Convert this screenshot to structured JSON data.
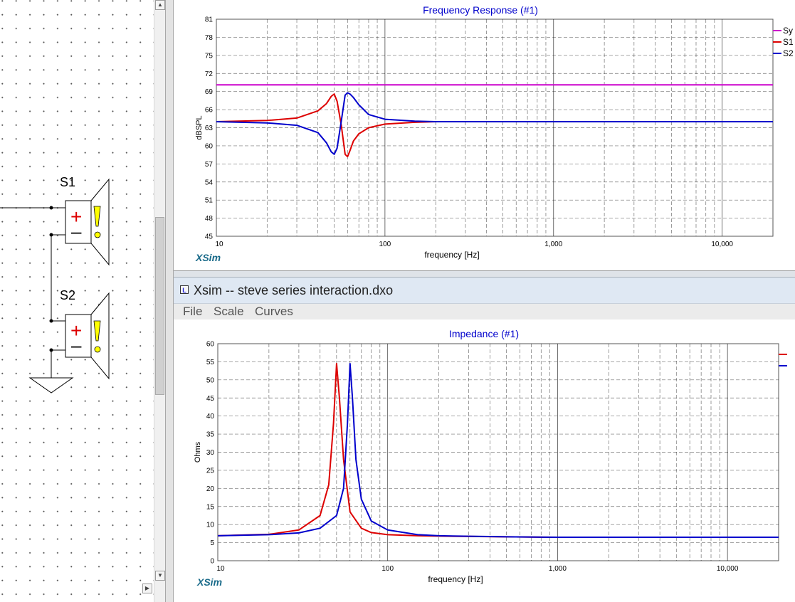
{
  "schematic": {
    "speakers": [
      {
        "label": "S1"
      },
      {
        "label": "S2"
      }
    ],
    "plus_glyph": "+",
    "minus_glyph": "–",
    "warn_glyph": "!"
  },
  "freq_chart": {
    "title": "Frequency Response (#1)",
    "xlabel": "frequency [Hz]",
    "ylabel": "dBSPL",
    "watermark": "XSim",
    "legend": [
      "Sy",
      "S1",
      "S2"
    ]
  },
  "imp_window": {
    "title": "Xsim -- steve series interaction.dxo",
    "menu": [
      "File",
      "Scale",
      "Curves"
    ]
  },
  "imp_chart": {
    "title": "Impedance (#1)",
    "xlabel": "frequency [Hz]",
    "ylabel": "Ohms",
    "watermark": "XSim"
  },
  "colors": {
    "sys": "#cc00cc",
    "s1": "#dd0000",
    "s2": "#0000cc",
    "title_blue": "#0000cc",
    "watermark": "#1a6b8a"
  },
  "chart_data": [
    {
      "type": "line",
      "title": "Frequency Response (#1)",
      "xlabel": "frequency [Hz]",
      "ylabel": "dBSPL",
      "xscale": "log",
      "xlim": [
        10,
        20000
      ],
      "ylim": [
        45,
        81
      ],
      "x_ticks": [
        "10",
        "100",
        "1,000",
        "10,000"
      ],
      "y_ticks": [
        "45",
        "48",
        "51",
        "54",
        "57",
        "60",
        "63",
        "66",
        "69",
        "72",
        "75",
        "78",
        "81"
      ],
      "grid": true,
      "legend_position": "right",
      "series": [
        {
          "name": "Sy",
          "color": "#cc00cc",
          "x": [
            10,
            20000
          ],
          "y": [
            70.1,
            70.1
          ]
        },
        {
          "name": "S1",
          "color": "#dd0000",
          "x": [
            10,
            20,
            30,
            40,
            45,
            48,
            50,
            52,
            55,
            58,
            60,
            62,
            65,
            70,
            80,
            100,
            150,
            200,
            1000,
            20000
          ],
          "y": [
            64.0,
            64.2,
            64.6,
            65.8,
            67.0,
            68.2,
            68.6,
            67.4,
            63.5,
            58.6,
            58.2,
            59.2,
            60.8,
            62.0,
            63.0,
            63.6,
            63.9,
            64.0,
            64.0,
            64.0
          ]
        },
        {
          "name": "S2",
          "color": "#0000cc",
          "x": [
            10,
            20,
            30,
            40,
            45,
            48,
            50,
            52,
            55,
            58,
            60,
            62,
            65,
            70,
            80,
            100,
            150,
            200,
            1000,
            20000
          ],
          "y": [
            64.0,
            63.8,
            63.4,
            62.2,
            60.5,
            59.0,
            58.6,
            59.6,
            64.0,
            68.4,
            68.8,
            68.6,
            68.0,
            66.8,
            65.2,
            64.4,
            64.1,
            64.0,
            64.0,
            64.0
          ]
        }
      ]
    },
    {
      "type": "line",
      "title": "Impedance (#1)",
      "xlabel": "frequency [Hz]",
      "ylabel": "Ohms",
      "xscale": "log",
      "xlim": [
        10,
        20000
      ],
      "ylim": [
        0,
        60
      ],
      "x_ticks": [
        "10",
        "100",
        "1,000",
        "10,000"
      ],
      "y_ticks": [
        "0",
        "5",
        "10",
        "15",
        "20",
        "25",
        "30",
        "35",
        "40",
        "45",
        "50",
        "55",
        "60"
      ],
      "grid": true,
      "legend_position": "right",
      "series": [
        {
          "name": "",
          "color": "#dd0000",
          "x": [
            10,
            20,
            30,
            40,
            45,
            48,
            50,
            52,
            55,
            60,
            70,
            80,
            100,
            150,
            200,
            500,
            1000,
            20000
          ],
          "y": [
            6.9,
            7.3,
            8.5,
            12.5,
            21.0,
            38.0,
            54.5,
            45.0,
            28.0,
            13.5,
            9.0,
            7.8,
            7.2,
            6.9,
            6.8,
            6.6,
            6.5,
            6.5
          ]
        },
        {
          "name": "",
          "color": "#0000cc",
          "x": [
            10,
            20,
            30,
            40,
            50,
            55,
            58,
            60,
            62,
            65,
            70,
            80,
            100,
            150,
            200,
            500,
            1000,
            20000
          ],
          "y": [
            6.9,
            7.2,
            7.7,
            9.0,
            12.5,
            20.0,
            38.0,
            54.5,
            45.0,
            28.0,
            17.0,
            11.0,
            8.5,
            7.2,
            6.9,
            6.6,
            6.5,
            6.5
          ]
        }
      ]
    }
  ]
}
